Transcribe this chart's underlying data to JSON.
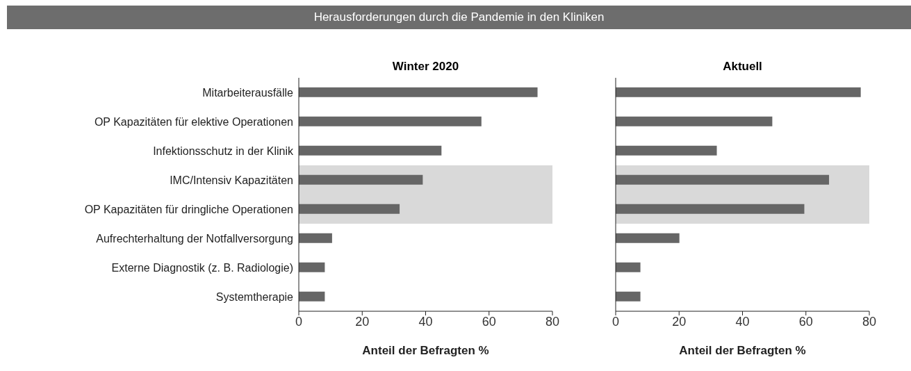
{
  "chart_data": [
    {
      "type": "bar",
      "orientation": "horizontal",
      "title": "Herausforderungen durch die Pandemie in den Kliniken",
      "subtitle": "Winter 2020",
      "xlabel": "Anteil der Befragten %",
      "categories": [
        "Mitarbeiterausfälle",
        "OP Kapazitäten für elektive Operationen",
        "Infektionsschutz in der Klinik",
        "IMC/Intensiv Kapazitäten",
        "OP Kapazitäten für dringliche Operationen",
        "Aufrechterhaltung der Notfallversorgung",
        "Externe Diagnostik (z. B. Radiologie)",
        "Systemtherapie"
      ],
      "values": [
        75.3,
        57.6,
        45,
        39.1,
        31.8,
        10.5,
        8.2,
        8.2
      ],
      "color": "#666666",
      "xlim": [
        0,
        80
      ],
      "xticks": [
        0,
        20,
        40,
        60,
        80
      ],
      "grid": false,
      "bands": [
        {
          "axis": "y",
          "from": "IMC/Intensiv Kapazitäten",
          "to": "OP Kapazitäten für dringliche Operationen",
          "color": "#d9d9d9"
        }
      ]
    },
    {
      "type": "bar",
      "orientation": "horizontal",
      "title": "Aktuell",
      "xlabel": "Anteil der Befragten %",
      "categories": [
        "Mitarbeiterausfälle",
        "OP Kapazitäten für elektive Operationen",
        "Infektionsschutz in der Klinik",
        "IMC/Intensiv Kapazitäten",
        "OP Kapazitäten für dringliche Operationen",
        "Aufrechterhaltung der Notfallversorgung",
        "Externe Diagnostik (z. B. Radiologie)",
        "Systemtherapie"
      ],
      "values": [
        77.3,
        49.4,
        31.9,
        67.3,
        59.5,
        20.1,
        7.8,
        7.8
      ],
      "color": "#666666",
      "xlim": [
        0,
        80
      ],
      "xticks": [
        0,
        20,
        40,
        60,
        80
      ],
      "grid": false,
      "tick_labels": "x",
      "bands": [
        {
          "axis": "y",
          "from": "IMC/Intensiv Kapazitäten",
          "to": "OP Kapazitäten für dringliche Operationen",
          "color": "#d9d9d9"
        }
      ]
    }
  ]
}
